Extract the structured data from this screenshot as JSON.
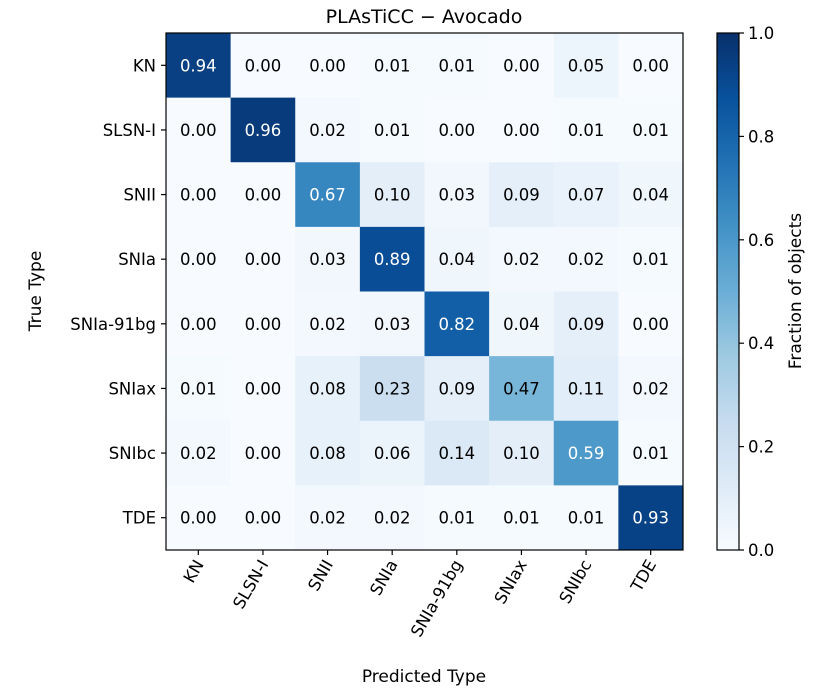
{
  "chart_data": {
    "type": "heatmap",
    "title": "PLAsTiCC − Avocado",
    "xlabel": "Predicted Type",
    "ylabel": "True Type",
    "x_categories": [
      "KN",
      "SLSN-I",
      "SNII",
      "SNIa",
      "SNIa-91bg",
      "SNIax",
      "SNIbc",
      "TDE"
    ],
    "y_categories": [
      "KN",
      "SLSN-I",
      "SNII",
      "SNIa",
      "SNIa-91bg",
      "SNIax",
      "SNIbc",
      "TDE"
    ],
    "values": [
      [
        0.94,
        0.0,
        0.0,
        0.01,
        0.01,
        0.0,
        0.05,
        0.0
      ],
      [
        0.0,
        0.96,
        0.02,
        0.01,
        0.0,
        0.0,
        0.01,
        0.01
      ],
      [
        0.0,
        0.0,
        0.67,
        0.1,
        0.03,
        0.09,
        0.07,
        0.04
      ],
      [
        0.0,
        0.0,
        0.03,
        0.89,
        0.04,
        0.02,
        0.02,
        0.01
      ],
      [
        0.0,
        0.0,
        0.02,
        0.03,
        0.82,
        0.04,
        0.09,
        0.0
      ],
      [
        0.01,
        0.0,
        0.08,
        0.23,
        0.09,
        0.47,
        0.11,
        0.02
      ],
      [
        0.02,
        0.0,
        0.08,
        0.06,
        0.14,
        0.1,
        0.59,
        0.01
      ],
      [
        0.0,
        0.0,
        0.02,
        0.02,
        0.01,
        0.01,
        0.01,
        0.93
      ]
    ],
    "colorbar": {
      "label": "Fraction of objects",
      "range": [
        0.0,
        1.0
      ],
      "ticks": [
        "0.0",
        "0.2",
        "0.4",
        "0.6",
        "0.8",
        "1.0"
      ],
      "colormap": "Blues"
    }
  }
}
